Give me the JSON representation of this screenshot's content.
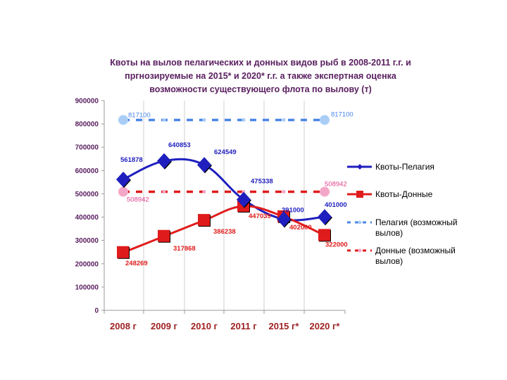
{
  "chart_data": {
    "type": "line",
    "title_lines": [
      "Квоты на вылов пелагических и донных видов рыб в 2008-2011 г.г. и",
      "пргнозируемые на 2015* и 2020* г.г. а также экспертная оценка",
      "возможности существующего флота по вылову (т)"
    ],
    "categories": [
      "2008 г",
      "2009 г",
      "2010 г",
      "2011 г",
      "2015 г*",
      "2020 г*"
    ],
    "ylim": [
      0,
      900000
    ],
    "yticks": [
      "0",
      "100000",
      "200000",
      "300000",
      "400000",
      "500000",
      "600000",
      "700000",
      "800000",
      "900000"
    ],
    "series": [
      {
        "name": "Квоты-Пелагия",
        "color": "#1f1fbf",
        "marker": "diamond",
        "values": [
          561878,
          640853,
          624549,
          475338,
          391000,
          401000
        ],
        "labels": [
          "561878",
          "640853",
          "624549",
          "475338",
          "391000",
          "401000"
        ]
      },
      {
        "name": "Квоты-Донные",
        "color": "#e01b1b",
        "marker": "square",
        "values": [
          248269,
          317868,
          386238,
          447039,
          402000,
          322000
        ],
        "labels": [
          "248269",
          "317868",
          "386238",
          "447039",
          "402000",
          "322000"
        ]
      },
      {
        "name": "Пелагия (возможный вылов)",
        "color": "#4a86e8",
        "dash": true,
        "values": [
          817100,
          817100,
          817100,
          817100,
          817100,
          817100
        ],
        "labels": [
          "817100",
          "817100"
        ]
      },
      {
        "name": "Донные (возможный вылов)",
        "color": "#e01b1b",
        "point_color": "#f4a6c8",
        "dash": true,
        "values": [
          508942,
          508942,
          508942,
          508942,
          508942,
          508942
        ],
        "labels": [
          "508942",
          "508942"
        ]
      }
    ],
    "legend": {
      "position": "right",
      "entries": [
        [
          "Квоты-Пелагия"
        ],
        [
          "Квоты-Донные"
        ],
        [
          "Пелагия (возможный",
          "вылов)"
        ],
        [
          "Донные (возможный",
          "вылов)"
        ]
      ]
    }
  }
}
